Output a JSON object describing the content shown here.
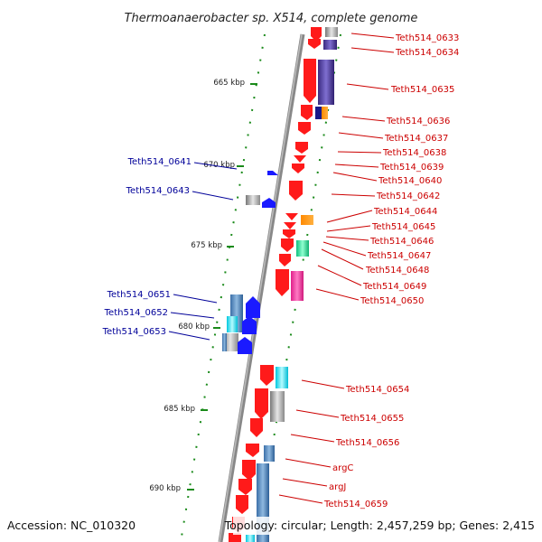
{
  "title": "Thermoanaerobacter sp. X514, complete genome",
  "footer_left": "Accession: NC_010320",
  "footer_right": "Topology: circular; Length: 2,457,259 bp; Genes: 2,415",
  "colors": {
    "forward": "#ff1a1a",
    "reverse": "#1a1aff",
    "red_label": "#cc0000",
    "blue_label": "#000099",
    "backbone": "#888888",
    "tick": "#1a8a1a"
  },
  "ticks": [
    {
      "label": "665 kbp"
    },
    {
      "label": "670 kbp"
    },
    {
      "label": "675 kbp"
    },
    {
      "label": "680 kbp"
    },
    {
      "label": "685 kbp"
    },
    {
      "label": "690 kbp"
    }
  ],
  "forward_labels": [
    "Teth514_0633",
    "Teth514_0634",
    "Teth514_0635",
    "Teth514_0636",
    "Teth514_0637",
    "Teth514_0638",
    "Teth514_0639",
    "Teth514_0640",
    "Teth514_0642",
    "Teth514_0644",
    "Teth514_0645",
    "Teth514_0646",
    "Teth514_0647",
    "Teth514_0648",
    "Teth514_0649",
    "Teth514_0650",
    "Teth514_0654",
    "Teth514_0655",
    "Teth514_0656",
    "argC",
    "argJ",
    "Teth514_0659"
  ],
  "reverse_labels": [
    "Teth514_0641",
    "Teth514_0643",
    "Teth514_0651",
    "Teth514_0652",
    "Teth514_0653"
  ]
}
